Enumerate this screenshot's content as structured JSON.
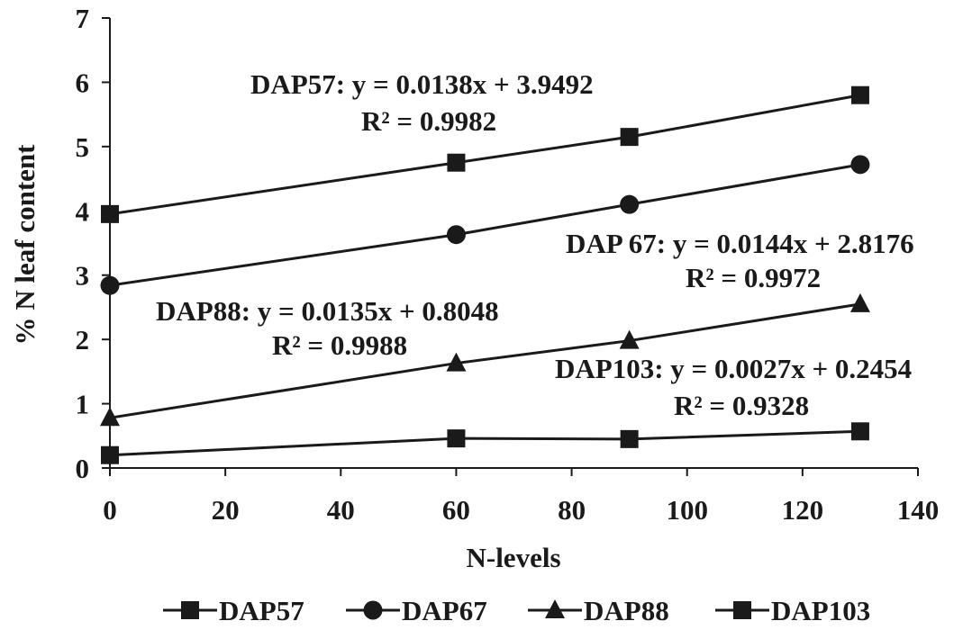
{
  "chart_data": {
    "type": "line",
    "xlabel": "N-levels",
    "ylabel": "% N leaf content",
    "xlim": [
      0,
      140
    ],
    "ylim": [
      0,
      7
    ],
    "xticks": [
      "0",
      "20",
      "40",
      "60",
      "80",
      "100",
      "120",
      "140"
    ],
    "yticks": [
      "0",
      "1",
      "2",
      "3",
      "4",
      "5",
      "6",
      "7"
    ],
    "grid": false,
    "legend_position": "bottom",
    "series": [
      {
        "name": "DAP57",
        "marker": "square",
        "x": [
          0,
          60,
          90,
          130
        ],
        "y": [
          3.95,
          4.75,
          5.15,
          5.8
        ]
      },
      {
        "name": "DAP67",
        "marker": "circle",
        "x": [
          0,
          60,
          90,
          130
        ],
        "y": [
          2.84,
          3.63,
          4.1,
          4.72
        ]
      },
      {
        "name": "DAP88",
        "marker": "triangle",
        "x": [
          0,
          60,
          90,
          130
        ],
        "y": [
          0.78,
          1.63,
          1.98,
          2.55
        ]
      },
      {
        "name": "DAP103",
        "marker": "square",
        "x": [
          0,
          60,
          90,
          130
        ],
        "y": [
          0.2,
          0.46,
          0.45,
          0.57
        ]
      }
    ],
    "annotations": [
      {
        "line1": "DAP57: y = 0.0138x + 3.9492",
        "line2": "R² = 0.9982"
      },
      {
        "line1": "DAP 67: y = 0.0144x + 2.8176",
        "line2": "R² = 0.9972"
      },
      {
        "line1": "DAP88: y = 0.0135x + 0.8048",
        "line2": "R² = 0.9988"
      },
      {
        "line1": "DAP103: y = 0.0027x + 0.2454",
        "line2": "R² = 0.9328"
      }
    ],
    "colors": {
      "line": "#1a1a1a",
      "text": "#1a1a1a",
      "background": "#ffffff"
    }
  }
}
